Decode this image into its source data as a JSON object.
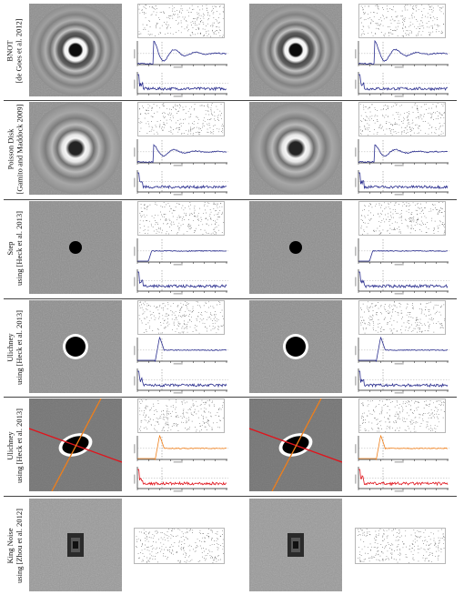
{
  "rows": [
    {
      "line1": "BNOT",
      "line2": "[de Goes et al. 2012]",
      "spectrum": "rings-strong",
      "plot_colors": [
        "#2b2f8f",
        "#2b2f8f"
      ]
    },
    {
      "line1": "Poisson Disk",
      "line2": "[Gamito and Maddock 2009]",
      "spectrum": "rings-soft",
      "plot_colors": [
        "#2b2f8f",
        "#2b2f8f"
      ]
    },
    {
      "line1": "Step",
      "line2": "using [Heck et al. 2013]",
      "spectrum": "dot",
      "plot_colors": [
        "#2b2f8f",
        "#2b2f8f"
      ]
    },
    {
      "line1": "Ulichney",
      "line2": "using [Heck et al. 2013]",
      "spectrum": "ring-single",
      "plot_colors": [
        "#2b2f8f",
        "#2b2f8f"
      ]
    },
    {
      "line1": "Ulichney",
      "line2": "using [Heck et al. 2013]",
      "spectrum": "ellipse",
      "plot_colors": [
        "#f07f1a",
        "#e0141c"
      ]
    },
    {
      "line1": "King Noise",
      "line2": "using [Zhou et al. 2012]",
      "spectrum": "king",
      "plot_colors": []
    }
  ],
  "colors": {
    "blue": "#2b2f8f",
    "orange": "#f07f1a",
    "red": "#e0141c"
  }
}
